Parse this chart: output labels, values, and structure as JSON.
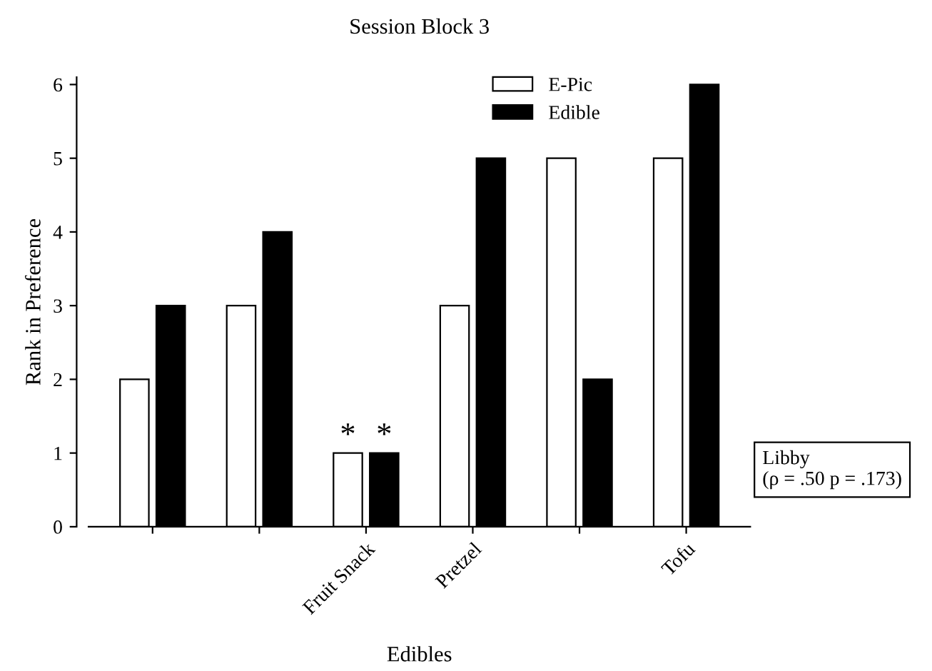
{
  "chart_data": {
    "type": "bar",
    "title": "Session Block 3",
    "xlabel": "Edibles",
    "ylabel": "Rank in Preference",
    "categories": [
      null,
      null,
      "Fruit Snack",
      "Pretzel",
      null,
      "Tofu"
    ],
    "series": [
      {
        "name": "E-Pic",
        "color": "#ffffff",
        "values": [
          2,
          3,
          1,
          3,
          5,
          5
        ]
      },
      {
        "name": "Edible",
        "color": "#000000",
        "values": [
          3,
          4,
          1,
          5,
          2,
          6
        ]
      }
    ],
    "ylim": [
      0,
      6.1
    ],
    "yticks": [
      0,
      1,
      2,
      3,
      4,
      5,
      6
    ],
    "grid": false,
    "legend": "top right",
    "annotations": [
      {
        "text": "*",
        "x": "Fruit Snack",
        "y": 1
      },
      {
        "text": "*",
        "x": "Fruit Snack",
        "y": 1
      },
      "Libby\n(ρ = .50 p = .173)"
    ]
  }
}
